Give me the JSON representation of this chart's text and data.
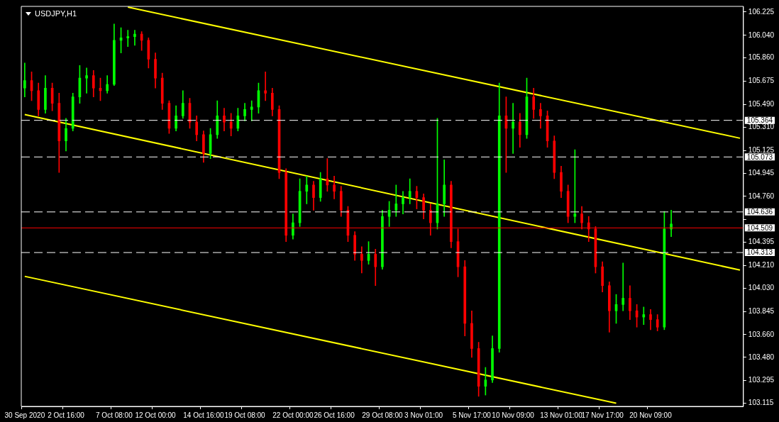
{
  "chart_data": {
    "type": "candlestick",
    "title": "USDJPY,H1",
    "categories": [
      "30 Sep 2020",
      null,
      null,
      null,
      null,
      null,
      "2 Oct 16:00",
      null,
      null,
      null,
      null,
      null,
      null,
      "7 Oct 08:00",
      null,
      null,
      null,
      null,
      null,
      "12 Oct 00:00",
      null,
      null,
      null,
      null,
      null,
      null,
      "14 Oct 16:00",
      null,
      null,
      null,
      null,
      null,
      "19 Oct 08:00",
      null,
      null,
      null,
      null,
      null,
      null,
      "22 Oct 00:00",
      null,
      null,
      null,
      null,
      null,
      "26 Oct 16:00",
      null,
      null,
      null,
      null,
      null,
      null,
      "29 Oct 08:00",
      null,
      null,
      null,
      null,
      null,
      "3 Nov 01:00",
      null,
      null,
      null,
      null,
      null,
      null,
      "5 Nov 17:00",
      null,
      null,
      null,
      null,
      null,
      "10 Nov 09:00",
      null,
      null,
      null,
      null,
      null,
      null,
      "13 Nov 01:00",
      null,
      null,
      null,
      null,
      null,
      "17 Nov 17:00",
      null,
      null,
      null,
      null,
      null,
      null,
      "20 Nov 09:00",
      null,
      null,
      null,
      null,
      null,
      null,
      null,
      null,
      null,
      null,
      null,
      null,
      null
    ],
    "ylim": [
      103.09,
      106.27
    ],
    "yticks": [
      {
        "value": 106.225,
        "label": "106.225"
      },
      {
        "value": 106.04,
        "label": "106.040"
      },
      {
        "value": 105.86,
        "label": "105.860"
      },
      {
        "value": 105.675,
        "label": "105.675"
      },
      {
        "value": 105.49,
        "label": "105.490"
      },
      {
        "value": 105.31,
        "label": "105.310"
      },
      {
        "value": 105.125,
        "label": "105.125"
      },
      {
        "value": 104.945,
        "label": "104.945"
      },
      {
        "value": 104.76,
        "label": "104.760"
      },
      {
        "value": 104.575,
        "label": null
      },
      {
        "value": 104.395,
        "label": "104.395"
      },
      {
        "value": 104.21,
        "label": "104.210"
      },
      {
        "value": 104.03,
        "label": "104.030"
      },
      {
        "value": 103.845,
        "label": "103.845"
      },
      {
        "value": 103.66,
        "label": "103.660"
      },
      {
        "value": 103.48,
        "label": "103.480"
      },
      {
        "value": 103.295,
        "label": "103.295"
      },
      {
        "value": 103.115,
        "label": "103.115"
      }
    ],
    "grid": false,
    "legend": false,
    "ref_lines": [
      {
        "axis": "y",
        "value": 105.364,
        "label": "105.364",
        "color": "#ffffff",
        "line_style": "dashed"
      },
      {
        "axis": "y",
        "value": 105.073,
        "label": "105.073",
        "color": "#ffffff",
        "line_style": "dashed"
      },
      {
        "axis": "y",
        "value": 104.636,
        "label": "104.636",
        "color": "#ffffff",
        "line_style": "dashed"
      },
      {
        "axis": "y",
        "value": 104.313,
        "label": "104.313",
        "color": "#ffffff",
        "line_style": "dashed"
      },
      {
        "axis": "y",
        "value": 104.509,
        "label": "104.509",
        "color": "#ff0000",
        "line_style": "solid"
      }
    ],
    "ohlc": [
      [
        105.62,
        105.82,
        105.55,
        105.68
      ],
      [
        105.68,
        105.75,
        105.52,
        105.6
      ],
      [
        105.6,
        105.66,
        105.4,
        105.45
      ],
      [
        105.45,
        105.72,
        105.42,
        105.62
      ],
      [
        105.62,
        105.66,
        105.44,
        105.5
      ],
      [
        105.5,
        105.58,
        104.95,
        105.2
      ],
      [
        105.2,
        105.38,
        105.12,
        105.3
      ],
      [
        105.3,
        105.58,
        105.28,
        105.55
      ],
      [
        105.55,
        105.8,
        105.5,
        105.7
      ],
      [
        105.7,
        105.78,
        105.58,
        105.72
      ],
      [
        105.72,
        105.76,
        105.55,
        105.62
      ],
      [
        105.62,
        105.7,
        105.52,
        105.6
      ],
      [
        105.6,
        105.72,
        105.58,
        105.65
      ],
      [
        105.65,
        106.13,
        105.64,
        106.0
      ],
      [
        106.0,
        106.1,
        105.9,
        106.02
      ],
      [
        106.02,
        106.08,
        105.95,
        106.03
      ],
      [
        106.03,
        106.08,
        105.96,
        106.05
      ],
      [
        106.05,
        106.07,
        105.92,
        106.0
      ],
      [
        106.0,
        106.02,
        105.78,
        105.85
      ],
      [
        105.85,
        105.9,
        105.62,
        105.7
      ],
      [
        105.7,
        105.74,
        105.45,
        105.5
      ],
      [
        105.5,
        105.52,
        105.26,
        105.3
      ],
      [
        105.3,
        105.48,
        105.28,
        105.4
      ],
      [
        105.4,
        105.6,
        105.38,
        105.5
      ],
      [
        105.5,
        105.54,
        105.3,
        105.35
      ],
      [
        105.35,
        105.4,
        105.2,
        105.25
      ],
      [
        105.25,
        105.28,
        105.03,
        105.1
      ],
      [
        105.1,
        105.3,
        105.06,
        105.25
      ],
      [
        105.25,
        105.52,
        105.22,
        105.4
      ],
      [
        105.4,
        105.46,
        105.28,
        105.35
      ],
      [
        105.35,
        105.42,
        105.24,
        105.3
      ],
      [
        105.3,
        105.46,
        105.28,
        105.4
      ],
      [
        105.4,
        105.5,
        105.36,
        105.45
      ],
      [
        105.45,
        105.52,
        105.36,
        105.47
      ],
      [
        105.47,
        105.66,
        105.42,
        105.6
      ],
      [
        105.6,
        105.75,
        105.52,
        105.58
      ],
      [
        105.58,
        105.62,
        105.4,
        105.45
      ],
      [
        105.45,
        105.48,
        104.9,
        104.95
      ],
      [
        104.95,
        104.98,
        104.4,
        104.45
      ],
      [
        104.45,
        104.62,
        104.42,
        104.55
      ],
      [
        104.55,
        104.9,
        104.52,
        104.8
      ],
      [
        104.8,
        104.92,
        104.7,
        104.85
      ],
      [
        104.85,
        104.88,
        104.65,
        104.75
      ],
      [
        104.75,
        104.95,
        104.72,
        104.9
      ],
      [
        104.9,
        105.06,
        104.8,
        104.85
      ],
      [
        104.85,
        104.92,
        104.74,
        104.8
      ],
      [
        104.8,
        104.84,
        104.6,
        104.65
      ],
      [
        104.65,
        104.68,
        104.4,
        104.45
      ],
      [
        104.45,
        104.48,
        104.25,
        104.3
      ],
      [
        104.3,
        104.36,
        104.15,
        104.25
      ],
      [
        104.25,
        104.4,
        104.22,
        104.3
      ],
      [
        104.3,
        104.34,
        104.05,
        104.2
      ],
      [
        104.2,
        104.65,
        104.18,
        104.6
      ],
      [
        104.6,
        104.72,
        104.52,
        104.65
      ],
      [
        104.65,
        104.85,
        104.6,
        104.7
      ],
      [
        104.7,
        104.8,
        104.62,
        104.75
      ],
      [
        104.75,
        104.9,
        104.7,
        104.8
      ],
      [
        104.8,
        104.84,
        104.66,
        104.75
      ],
      [
        104.75,
        104.78,
        104.58,
        104.65
      ],
      [
        104.65,
        104.7,
        104.45,
        104.55
      ],
      [
        104.55,
        105.38,
        104.5,
        104.7
      ],
      [
        104.7,
        105.05,
        104.6,
        104.85
      ],
      [
        104.85,
        104.88,
        104.35,
        104.4
      ],
      [
        104.4,
        104.5,
        104.12,
        104.2
      ],
      [
        104.2,
        104.25,
        103.65,
        103.75
      ],
      [
        103.75,
        103.85,
        103.48,
        103.55
      ],
      [
        103.55,
        103.6,
        103.17,
        103.25
      ],
      [
        103.25,
        103.4,
        103.18,
        103.3
      ],
      [
        103.3,
        103.65,
        103.28,
        103.55
      ],
      [
        103.55,
        105.66,
        103.52,
        105.4
      ],
      [
        105.4,
        105.55,
        104.95,
        105.3
      ],
      [
        105.3,
        105.5,
        105.1,
        105.35
      ],
      [
        105.35,
        105.42,
        105.15,
        105.25
      ],
      [
        105.25,
        105.7,
        105.22,
        105.55
      ],
      [
        105.55,
        105.62,
        105.38,
        105.45
      ],
      [
        105.45,
        105.5,
        105.3,
        105.4
      ],
      [
        105.4,
        105.44,
        105.15,
        105.2
      ],
      [
        105.2,
        105.24,
        104.9,
        104.95
      ],
      [
        104.95,
        105.0,
        104.75,
        104.8
      ],
      [
        104.8,
        104.85,
        104.55,
        104.6
      ],
      [
        104.6,
        105.13,
        104.55,
        104.62
      ],
      [
        104.62,
        104.68,
        104.5,
        104.55
      ],
      [
        104.55,
        104.6,
        104.4,
        104.5
      ],
      [
        104.5,
        104.52,
        104.15,
        104.2
      ],
      [
        104.2,
        104.24,
        104.0,
        104.05
      ],
      [
        104.05,
        104.08,
        103.68,
        103.85
      ],
      [
        103.85,
        103.98,
        103.75,
        103.9
      ],
      [
        103.9,
        104.23,
        103.85,
        103.95
      ],
      [
        103.95,
        104.05,
        103.78,
        103.85
      ],
      [
        103.85,
        103.9,
        103.72,
        103.8
      ],
      [
        103.8,
        103.88,
        103.74,
        103.82
      ],
      [
        103.82,
        103.86,
        103.7,
        103.78
      ],
      [
        103.78,
        103.82,
        103.69,
        103.72
      ],
      [
        103.72,
        104.64,
        103.7,
        104.5
      ],
      [
        104.5,
        104.65,
        104.44,
        104.54
      ],
      null,
      null,
      null,
      null,
      null,
      null,
      null,
      null,
      null,
      null
    ],
    "colors": [
      "#00ff00",
      "#ff0000",
      "#ff0000",
      "#00ff00",
      "#ff0000",
      "#ff0000",
      "#00ff00",
      "#00ff00",
      "#00ff00",
      "#00ff00",
      "#ff0000",
      "#ff0000",
      "#00ff00",
      "#00ff00",
      "#00ff00",
      "#00ff00",
      "#00ff00",
      "#ff0000",
      "#ff0000",
      "#ff0000",
      "#ff0000",
      "#ff0000",
      "#00ff00",
      "#00ff00",
      "#ff0000",
      "#ff0000",
      "#ff0000",
      "#00ff00",
      "#00ff00",
      "#ff0000",
      "#ff0000",
      "#00ff00",
      "#00ff00",
      "#00ff00",
      "#00ff00",
      "#ff0000",
      "#ff0000",
      "#ff0000",
      "#ff0000",
      "#00ff00",
      "#00ff00",
      "#00ff00",
      "#ff0000",
      "#00ff00",
      "#ff0000",
      "#ff0000",
      "#ff0000",
      "#ff0000",
      "#ff0000",
      "#ff0000",
      "#00ff00",
      "#ff0000",
      "#00ff00",
      "#00ff00",
      "#00ff00",
      "#00ff00",
      "#00ff00",
      "#ff0000",
      "#ff0000",
      "#ff0000",
      "#00ff00",
      "#00ff00",
      "#ff0000",
      "#ff0000",
      "#ff0000",
      "#ff0000",
      "#ff0000",
      "#00ff00",
      "#00ff00",
      "#00ff00",
      "#ff0000",
      "#00ff00",
      "#ff0000",
      "#00ff00",
      "#ff0000",
      "#ff0000",
      "#ff0000",
      "#ff0000",
      "#ff0000",
      "#ff0000",
      "#00ff00",
      "#ff0000",
      "#ff0000",
      "#ff0000",
      "#ff0000",
      "#ff0000",
      "#00ff00",
      "#00ff00",
      "#ff0000",
      "#ff0000",
      "#00ff00",
      "#ff0000",
      "#ff0000",
      "#00ff00",
      "#00ff00",
      null,
      null,
      null,
      null,
      null,
      null,
      null,
      null,
      null,
      null
    ],
    "series": [
      {
        "type": "line",
        "color": "#ffff00",
        "values": [
          null,
          null,
          null,
          null,
          null,
          null,
          null,
          null,
          null,
          null,
          null,
          null,
          null,
          null,
          null,
          106.264,
          null,
          null,
          null,
          null,
          null,
          null,
          null,
          null,
          null,
          null,
          null,
          null,
          null,
          null,
          null,
          null,
          null,
          null,
          null,
          null,
          null,
          null,
          null,
          null,
          null,
          null,
          null,
          null,
          null,
          null,
          null,
          null,
          null,
          null,
          null,
          null,
          null,
          null,
          null,
          null,
          null,
          null,
          null,
          null,
          null,
          null,
          null,
          null,
          null,
          null,
          null,
          null,
          null,
          null,
          null,
          null,
          null,
          null,
          null,
          null,
          null,
          null,
          null,
          null,
          null,
          null,
          null,
          null,
          null,
          null,
          null,
          null,
          null,
          null,
          null,
          null,
          null,
          null,
          null,
          null,
          null,
          null,
          null,
          null,
          null,
          null,
          null,
          null,
          105.222
        ]
      },
      {
        "type": "line",
        "color": "#ffff00",
        "values": [
          105.41,
          null,
          null,
          null,
          null,
          null,
          null,
          null,
          null,
          null,
          null,
          null,
          null,
          null,
          null,
          null,
          null,
          null,
          null,
          null,
          null,
          null,
          null,
          null,
          null,
          null,
          null,
          null,
          null,
          null,
          null,
          null,
          null,
          null,
          null,
          null,
          null,
          null,
          null,
          null,
          null,
          null,
          null,
          null,
          null,
          null,
          null,
          null,
          null,
          null,
          null,
          null,
          null,
          null,
          null,
          null,
          null,
          null,
          null,
          null,
          null,
          null,
          null,
          null,
          null,
          null,
          null,
          null,
          null,
          null,
          null,
          null,
          null,
          null,
          null,
          null,
          null,
          null,
          null,
          null,
          null,
          null,
          null,
          null,
          null,
          null,
          null,
          null,
          null,
          null,
          null,
          null,
          null,
          null,
          null,
          null,
          null,
          null,
          null,
          null,
          null,
          null,
          null,
          null,
          104.174
        ]
      },
      {
        "type": "line",
        "color": "#ffff00",
        "values": [
          104.124,
          null,
          null,
          null,
          null,
          null,
          null,
          null,
          null,
          null,
          null,
          null,
          null,
          null,
          null,
          null,
          null,
          null,
          null,
          null,
          null,
          null,
          null,
          null,
          null,
          null,
          null,
          null,
          null,
          null,
          null,
          null,
          null,
          null,
          null,
          null,
          null,
          null,
          null,
          null,
          null,
          null,
          null,
          null,
          null,
          null,
          null,
          null,
          null,
          null,
          null,
          null,
          null,
          null,
          null,
          null,
          null,
          null,
          null,
          null,
          null,
          null,
          null,
          null,
          null,
          null,
          null,
          null,
          null,
          null,
          null,
          null,
          null,
          null,
          null,
          null,
          null,
          null,
          null,
          null,
          null,
          null,
          null,
          null,
          null,
          null,
          103.115,
          null,
          null,
          null,
          null,
          null,
          null,
          null,
          null,
          null,
          null,
          null,
          null,
          null,
          null,
          null,
          null,
          null,
          null
        ]
      }
    ]
  }
}
